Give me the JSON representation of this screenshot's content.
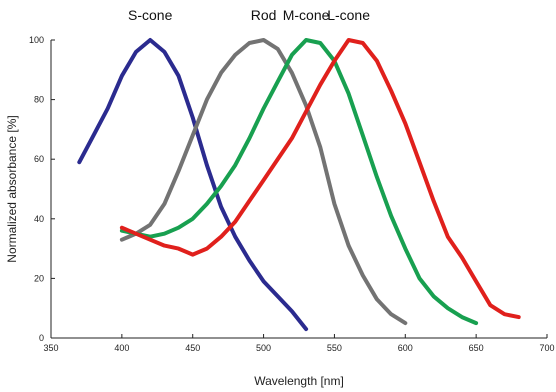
{
  "chart_data": {
    "type": "line",
    "title": "",
    "xlabel": "Wavelength [nm]",
    "ylabel": "Normalized absorbance [%]",
    "xlim": [
      350,
      700
    ],
    "ylim": [
      0,
      100
    ],
    "xticks": [
      350,
      400,
      450,
      500,
      550,
      600,
      650,
      700
    ],
    "yticks": [
      0,
      20,
      40,
      60,
      80,
      100
    ],
    "grid": false,
    "legend": "labels above curves",
    "series": [
      {
        "name": "S-cone",
        "color": "#2b2b8f",
        "x": [
          370,
          380,
          390,
          400,
          410,
          420,
          430,
          440,
          450,
          460,
          470,
          480,
          490,
          500,
          510,
          520,
          530
        ],
        "y": [
          59,
          68,
          77,
          88,
          96,
          100,
          96,
          88,
          74,
          58,
          44,
          34,
          26,
          19,
          14,
          9,
          3
        ]
      },
      {
        "name": "Rod",
        "color": "#737373",
        "x": [
          400,
          410,
          420,
          430,
          440,
          450,
          460,
          470,
          480,
          490,
          500,
          510,
          520,
          530,
          540,
          550,
          560,
          570,
          580,
          590,
          600
        ],
        "y": [
          33,
          35,
          38,
          45,
          56,
          68,
          80,
          89,
          95,
          99,
          100,
          97,
          89,
          78,
          64,
          45,
          31,
          21,
          13,
          8,
          5
        ]
      },
      {
        "name": "M-cone",
        "color": "#18a050",
        "x": [
          400,
          410,
          420,
          430,
          440,
          450,
          460,
          470,
          480,
          490,
          500,
          510,
          520,
          530,
          540,
          550,
          560,
          570,
          580,
          590,
          600,
          610,
          620,
          630,
          640,
          650
        ],
        "y": [
          36,
          35,
          34,
          35,
          37,
          40,
          45,
          51,
          58,
          67,
          77,
          86,
          95,
          100,
          99,
          93,
          82,
          68,
          54,
          41,
          30,
          20,
          14,
          10,
          7,
          5
        ]
      },
      {
        "name": "L-cone",
        "color": "#e0201c",
        "x": [
          400,
          410,
          420,
          430,
          440,
          450,
          460,
          470,
          480,
          490,
          500,
          510,
          520,
          530,
          540,
          550,
          560,
          570,
          580,
          590,
          600,
          610,
          620,
          630,
          640,
          650,
          660,
          670,
          680
        ],
        "y": [
          37,
          35,
          33,
          31,
          30,
          28,
          30,
          34,
          39,
          46,
          53,
          60,
          67,
          76,
          85,
          93,
          100,
          99,
          93,
          83,
          72,
          59,
          46,
          34,
          27,
          19,
          11,
          8,
          7
        ]
      }
    ],
    "series_labels": [
      "S-cone",
      "Rod",
      "M-cone",
      "L-cone"
    ]
  }
}
